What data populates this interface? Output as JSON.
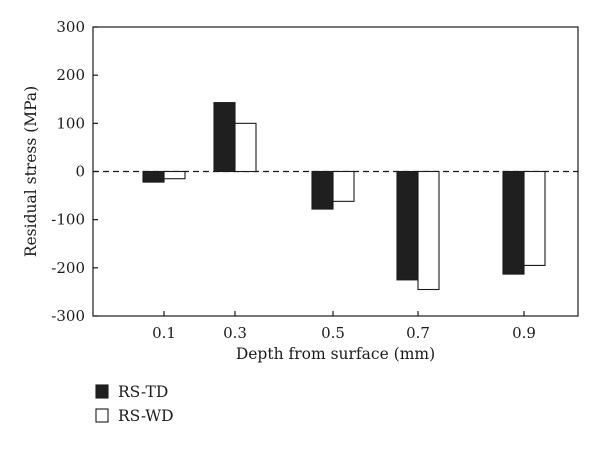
{
  "chart_data": {
    "type": "bar",
    "title": "",
    "xlabel": "Depth from surface (mm)",
    "ylabel": "Residual stress (MPa)",
    "categories": [
      "0.1",
      "0.3",
      "0.5",
      "0.7",
      "0.9"
    ],
    "ylim": [
      -300,
      300
    ],
    "yticks": [
      300,
      200,
      100,
      0,
      -100,
      -200,
      -300
    ],
    "zero_line": "dashed",
    "grid": false,
    "legend_position": "bottom-left",
    "series": [
      {
        "name": "RS-TD",
        "values": [
          -22,
          143,
          -78,
          -225,
          -213
        ],
        "fill": "#1f1f1f"
      },
      {
        "name": "RS-WD",
        "values": [
          -15,
          100,
          -62,
          -245,
          -195
        ],
        "fill": "#ffffff"
      }
    ]
  }
}
